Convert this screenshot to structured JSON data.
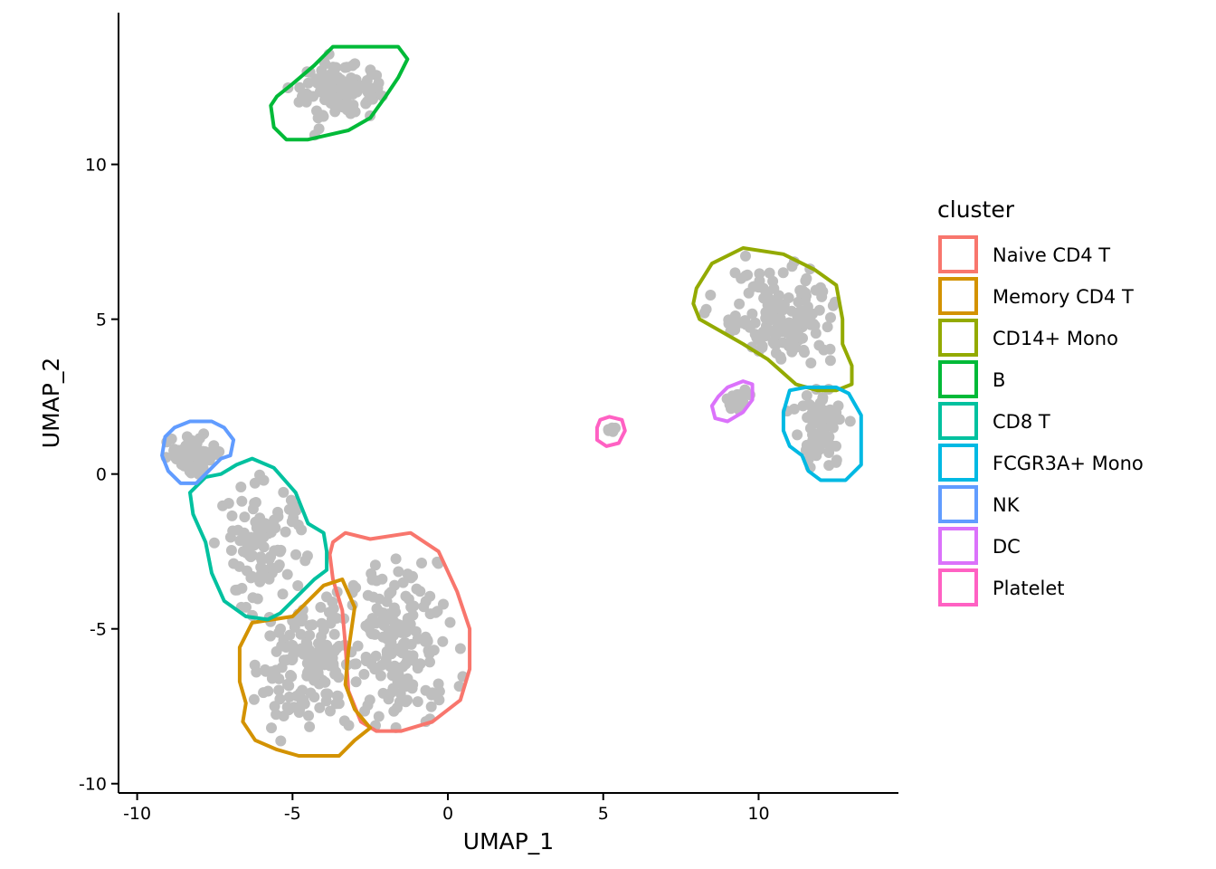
{
  "chart_data": {
    "type": "scatter",
    "xlabel": "UMAP_1",
    "ylabel": "UMAP_2",
    "xlim": [
      -10.6,
      14.5
    ],
    "ylim": [
      -10.3,
      14.9
    ],
    "x_ticks": [
      -10,
      -5,
      0,
      5,
      10
    ],
    "y_ticks": [
      -10,
      -5,
      0,
      5,
      10
    ],
    "x_tick_labels": [
      "-10",
      "-5",
      "0",
      "5",
      "10"
    ],
    "y_tick_labels": [
      "-10",
      "-5",
      "0",
      "5",
      "10"
    ],
    "grid": false,
    "point_color": "#BEBEBE",
    "legend": {
      "title": "cluster",
      "position": "right",
      "entries": [
        {
          "label": "Naive CD4 T",
          "color": "#F8766D"
        },
        {
          "label": "Memory CD4 T",
          "color": "#D39200"
        },
        {
          "label": "CD14+ Mono",
          "color": "#93AA00"
        },
        {
          "label": "B",
          "color": "#00BA38"
        },
        {
          "label": "CD8 T",
          "color": "#00C19F"
        },
        {
          "label": "FCGR3A+ Mono",
          "color": "#00B9E3"
        },
        {
          "label": "NK",
          "color": "#619CFF"
        },
        {
          "label": "DC",
          "color": "#DB72FB"
        },
        {
          "label": "Platelet",
          "color": "#FF61C3"
        }
      ]
    },
    "clusters": [
      {
        "name": "Naive CD4 T",
        "color": "#F8766D",
        "center": [
          -1.5,
          -5.5
        ],
        "sd": [
          0.85,
          1.3
        ],
        "n": 170,
        "outline": [
          [
            -3.7,
            -2.2
          ],
          [
            -3.3,
            -1.9
          ],
          [
            -2.5,
            -2.1
          ],
          [
            -1.2,
            -1.9
          ],
          [
            -0.3,
            -2.5
          ],
          [
            0.3,
            -3.8
          ],
          [
            0.7,
            -5.0
          ],
          [
            0.7,
            -6.3
          ],
          [
            0.4,
            -7.3
          ],
          [
            -0.5,
            -8.0
          ],
          [
            -1.5,
            -8.3
          ],
          [
            -2.3,
            -8.3
          ],
          [
            -2.8,
            -8.0
          ],
          [
            -3.2,
            -7.0
          ],
          [
            -3.3,
            -5.5
          ],
          [
            -3.4,
            -4.4
          ],
          [
            -3.7,
            -3.4
          ],
          [
            -3.8,
            -2.6
          ],
          [
            -3.7,
            -2.2
          ]
        ]
      },
      {
        "name": "Memory CD4 T",
        "color": "#D39200",
        "center": [
          -4.5,
          -6.0
        ],
        "sd": [
          0.85,
          1.1
        ],
        "n": 150,
        "outline": [
          [
            -5.0,
            -4.6
          ],
          [
            -4.0,
            -3.6
          ],
          [
            -3.4,
            -3.4
          ],
          [
            -3.0,
            -4.3
          ],
          [
            -3.2,
            -5.7
          ],
          [
            -3.3,
            -6.8
          ],
          [
            -3.0,
            -7.6
          ],
          [
            -2.5,
            -8.2
          ],
          [
            -3.0,
            -8.6
          ],
          [
            -3.5,
            -9.1
          ],
          [
            -4.8,
            -9.1
          ],
          [
            -5.5,
            -8.9
          ],
          [
            -6.2,
            -8.6
          ],
          [
            -6.6,
            -8.0
          ],
          [
            -6.5,
            -7.4
          ],
          [
            -6.7,
            -6.7
          ],
          [
            -6.7,
            -5.6
          ],
          [
            -6.3,
            -4.8
          ],
          [
            -5.0,
            -4.6
          ]
        ]
      },
      {
        "name": "CD14+ Mono",
        "color": "#93AA00",
        "center": [
          10.6,
          5.0
        ],
        "sd": [
          1.1,
          0.9
        ],
        "n": 150,
        "outline": [
          [
            8.0,
            6.0
          ],
          [
            8.5,
            6.8
          ],
          [
            9.5,
            7.3
          ],
          [
            10.8,
            7.1
          ],
          [
            11.8,
            6.6
          ],
          [
            12.5,
            6.1
          ],
          [
            12.7,
            5.0
          ],
          [
            12.7,
            4.2
          ],
          [
            13.0,
            3.5
          ],
          [
            13.0,
            2.9
          ],
          [
            12.5,
            2.7
          ],
          [
            11.9,
            2.7
          ],
          [
            11.2,
            2.9
          ],
          [
            10.3,
            3.7
          ],
          [
            9.5,
            4.2
          ],
          [
            8.8,
            4.6
          ],
          [
            8.1,
            5.0
          ],
          [
            7.9,
            5.5
          ],
          [
            8.0,
            6.0
          ]
        ]
      },
      {
        "name": "B",
        "color": "#00BA38",
        "center": [
          -3.4,
          12.3
        ],
        "sd": [
          0.75,
          0.45
        ],
        "n": 120,
        "outline": [
          [
            -5.0,
            12.6
          ],
          [
            -4.3,
            13.2
          ],
          [
            -3.7,
            13.8
          ],
          [
            -2.3,
            13.8
          ],
          [
            -1.6,
            13.8
          ],
          [
            -1.3,
            13.4
          ],
          [
            -1.6,
            12.8
          ],
          [
            -2.0,
            12.2
          ],
          [
            -2.5,
            11.5
          ],
          [
            -3.2,
            11.1
          ],
          [
            -4.5,
            10.8
          ],
          [
            -5.2,
            10.8
          ],
          [
            -5.6,
            11.2
          ],
          [
            -5.7,
            11.9
          ],
          [
            -5.5,
            12.2
          ],
          [
            -5.0,
            12.6
          ]
        ]
      },
      {
        "name": "CD8 T",
        "color": "#00C19F",
        "center": [
          -6.0,
          -2.5
        ],
        "sd": [
          0.7,
          1.1
        ],
        "n": 100,
        "outline": [
          [
            -6.8,
            0.3
          ],
          [
            -6.3,
            0.5
          ],
          [
            -5.6,
            0.2
          ],
          [
            -4.9,
            -0.6
          ],
          [
            -4.5,
            -1.6
          ],
          [
            -4.0,
            -1.9
          ],
          [
            -3.9,
            -2.5
          ],
          [
            -3.9,
            -3.1
          ],
          [
            -4.3,
            -3.4
          ],
          [
            -4.9,
            -4.0
          ],
          [
            -5.4,
            -4.5
          ],
          [
            -5.8,
            -4.7
          ],
          [
            -6.5,
            -4.6
          ],
          [
            -7.2,
            -4.1
          ],
          [
            -7.6,
            -3.2
          ],
          [
            -7.8,
            -2.2
          ],
          [
            -8.2,
            -1.3
          ],
          [
            -8.3,
            -0.6
          ],
          [
            -7.8,
            -0.1
          ],
          [
            -7.3,
            0.0
          ],
          [
            -6.8,
            0.3
          ]
        ]
      },
      {
        "name": "FCGR3A+ Mono",
        "color": "#00B9E3",
        "center": [
          12.0,
          1.5
        ],
        "sd": [
          0.45,
          0.7
        ],
        "n": 70,
        "outline": [
          [
            11.0,
            2.7
          ],
          [
            11.5,
            2.8
          ],
          [
            12.5,
            2.8
          ],
          [
            12.9,
            2.6
          ],
          [
            13.3,
            1.9
          ],
          [
            13.3,
            0.8
          ],
          [
            13.3,
            0.3
          ],
          [
            12.8,
            -0.2
          ],
          [
            12.0,
            -0.2
          ],
          [
            11.6,
            0.1
          ],
          [
            11.4,
            0.6
          ],
          [
            11.0,
            0.9
          ],
          [
            10.8,
            1.4
          ],
          [
            10.8,
            2.0
          ],
          [
            11.0,
            2.7
          ]
        ]
      },
      {
        "name": "NK",
        "color": "#619CFF",
        "center": [
          -8.2,
          0.7
        ],
        "sd": [
          0.5,
          0.35
        ],
        "n": 60,
        "outline": [
          [
            -8.8,
            1.5
          ],
          [
            -8.3,
            1.7
          ],
          [
            -7.6,
            1.7
          ],
          [
            -7.2,
            1.5
          ],
          [
            -6.9,
            1.1
          ],
          [
            -7.0,
            0.6
          ],
          [
            -7.3,
            0.5
          ],
          [
            -7.6,
            0.2
          ],
          [
            -7.8,
            0.0
          ],
          [
            -8.1,
            -0.3
          ],
          [
            -8.6,
            -0.3
          ],
          [
            -9.0,
            0.1
          ],
          [
            -9.2,
            0.6
          ],
          [
            -9.1,
            1.2
          ],
          [
            -8.8,
            1.5
          ]
        ]
      },
      {
        "name": "DC",
        "color": "#DB72FB",
        "center": [
          9.3,
          2.4
        ],
        "sd": [
          0.2,
          0.18
        ],
        "n": 14,
        "outline": [
          [
            9.0,
            2.8
          ],
          [
            9.5,
            3.0
          ],
          [
            9.8,
            2.9
          ],
          [
            9.8,
            2.4
          ],
          [
            9.5,
            2.0
          ],
          [
            9.0,
            1.7
          ],
          [
            8.6,
            1.8
          ],
          [
            8.5,
            2.2
          ],
          [
            8.7,
            2.5
          ],
          [
            9.0,
            2.8
          ]
        ]
      },
      {
        "name": "Platelet",
        "color": "#FF61C3",
        "center": [
          5.3,
          1.45
        ],
        "sd": [
          0.08,
          0.06
        ],
        "n": 6,
        "outline": [
          [
            4.9,
            1.75
          ],
          [
            5.2,
            1.85
          ],
          [
            5.6,
            1.75
          ],
          [
            5.7,
            1.4
          ],
          [
            5.5,
            1.0
          ],
          [
            5.1,
            0.9
          ],
          [
            4.8,
            1.1
          ],
          [
            4.8,
            1.5
          ],
          [
            4.9,
            1.75
          ]
        ]
      }
    ]
  }
}
